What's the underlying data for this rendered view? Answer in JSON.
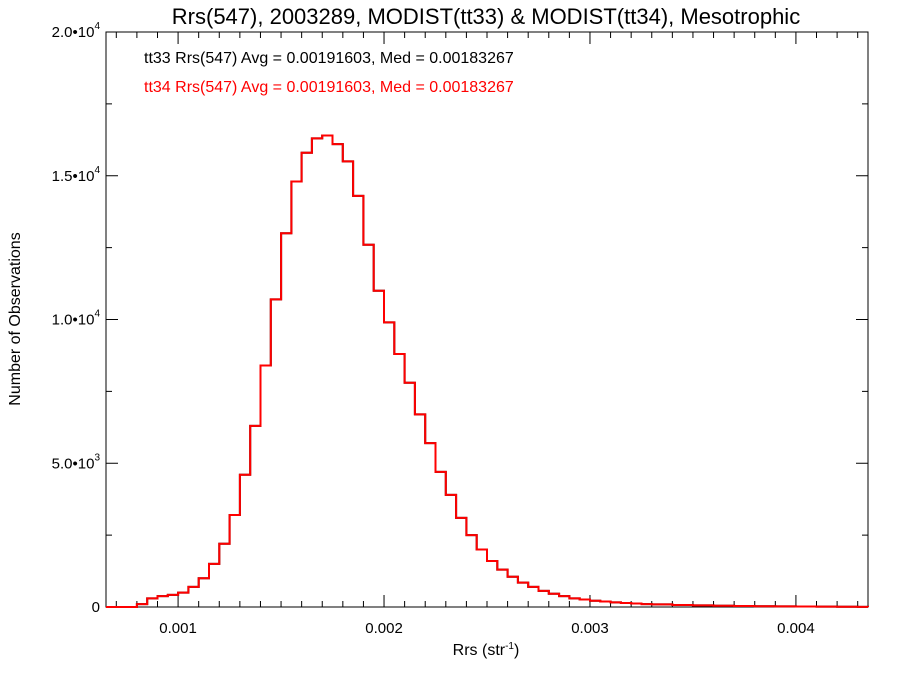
{
  "chart_data": {
    "type": "line",
    "title": "Rrs(547), 2003289, MODIST(tt33) & MODIST(tt34), Mesotrophic",
    "xlabel_main": "Rrs (str",
    "xlabel_sup": "-1",
    "xlabel_end": ")",
    "ylabel": "Number of Observations",
    "xlim": [
      0.00065,
      0.00435
    ],
    "ylim": [
      0,
      20000
    ],
    "grid": false,
    "x_ticks": [
      {
        "value": 0.001,
        "label": "0.001"
      },
      {
        "value": 0.002,
        "label": "0.002"
      },
      {
        "value": 0.003,
        "label": "0.003"
      },
      {
        "value": 0.004,
        "label": "0.004"
      }
    ],
    "y_ticks": [
      {
        "value": 0,
        "label": "0",
        "sup": ""
      },
      {
        "value": 5000,
        "label": "5.0•10",
        "sup": "3"
      },
      {
        "value": 10000,
        "label": "1.0•10",
        "sup": "4"
      },
      {
        "value": 15000,
        "label": "1.5•10",
        "sup": "4"
      },
      {
        "value": 20000,
        "label": "2.0•10",
        "sup": "4"
      }
    ],
    "annotations": [
      {
        "text": "tt33 Rrs(547) Avg = 0.00191603, Med = 0.00183267",
        "color": "#000000"
      },
      {
        "text": "tt34 Rrs(547) Avg = 0.00191603, Med = 0.00183267",
        "color": "#ff0000"
      }
    ],
    "series": [
      {
        "name": "tt33",
        "color": "#000000",
        "x": [
          0.00065,
          0.0007,
          0.00075,
          0.0008,
          0.00085,
          0.0009,
          0.00095,
          0.001,
          0.00105,
          0.0011,
          0.00115,
          0.0012,
          0.00125,
          0.0013,
          0.00135,
          0.0014,
          0.00145,
          0.0015,
          0.00155,
          0.0016,
          0.00165,
          0.0017,
          0.00175,
          0.0018,
          0.00185,
          0.0019,
          0.00195,
          0.002,
          0.00205,
          0.0021,
          0.00215,
          0.0022,
          0.00225,
          0.0023,
          0.00235,
          0.0024,
          0.00245,
          0.0025,
          0.00255,
          0.0026,
          0.00265,
          0.0027,
          0.00275,
          0.0028,
          0.00285,
          0.0029,
          0.00295,
          0.003,
          0.00305,
          0.0031,
          0.00315,
          0.0032,
          0.00325,
          0.0033,
          0.0034,
          0.0035,
          0.0036,
          0.0037,
          0.0038,
          0.0039,
          0.004,
          0.0041,
          0.0042,
          0.0043,
          0.00435
        ],
        "y": [
          0,
          0,
          0,
          100,
          300,
          380,
          420,
          500,
          700,
          1000,
          1500,
          2200,
          3200,
          4600,
          6300,
          8400,
          10700,
          13000,
          14800,
          15800,
          16300,
          16400,
          16100,
          15500,
          14300,
          12600,
          11000,
          9900,
          8800,
          7800,
          6700,
          5700,
          4700,
          3900,
          3100,
          2500,
          2000,
          1600,
          1300,
          1050,
          850,
          700,
          560,
          460,
          380,
          300,
          260,
          220,
          190,
          160,
          140,
          120,
          100,
          90,
          70,
          55,
          45,
          35,
          28,
          22,
          18,
          14,
          10,
          5,
          0
        ]
      },
      {
        "name": "tt34",
        "color": "#ff0000",
        "x": [
          0.00065,
          0.0007,
          0.00075,
          0.0008,
          0.00085,
          0.0009,
          0.00095,
          0.001,
          0.00105,
          0.0011,
          0.00115,
          0.0012,
          0.00125,
          0.0013,
          0.00135,
          0.0014,
          0.00145,
          0.0015,
          0.00155,
          0.0016,
          0.00165,
          0.0017,
          0.00175,
          0.0018,
          0.00185,
          0.0019,
          0.00195,
          0.002,
          0.00205,
          0.0021,
          0.00215,
          0.0022,
          0.00225,
          0.0023,
          0.00235,
          0.0024,
          0.00245,
          0.0025,
          0.00255,
          0.0026,
          0.00265,
          0.0027,
          0.00275,
          0.0028,
          0.00285,
          0.0029,
          0.00295,
          0.003,
          0.00305,
          0.0031,
          0.00315,
          0.0032,
          0.00325,
          0.0033,
          0.0034,
          0.0035,
          0.0036,
          0.0037,
          0.0038,
          0.0039,
          0.004,
          0.0041,
          0.0042,
          0.0043,
          0.00435
        ],
        "y": [
          0,
          0,
          0,
          100,
          300,
          380,
          420,
          500,
          700,
          1000,
          1500,
          2200,
          3200,
          4600,
          6300,
          8400,
          10700,
          13000,
          14800,
          15800,
          16300,
          16400,
          16100,
          15500,
          14300,
          12600,
          11000,
          9900,
          8800,
          7800,
          6700,
          5700,
          4700,
          3900,
          3100,
          2500,
          2000,
          1600,
          1300,
          1050,
          850,
          700,
          560,
          460,
          380,
          300,
          260,
          220,
          190,
          160,
          140,
          120,
          100,
          90,
          70,
          55,
          45,
          35,
          28,
          22,
          18,
          14,
          10,
          5,
          0
        ]
      }
    ]
  }
}
